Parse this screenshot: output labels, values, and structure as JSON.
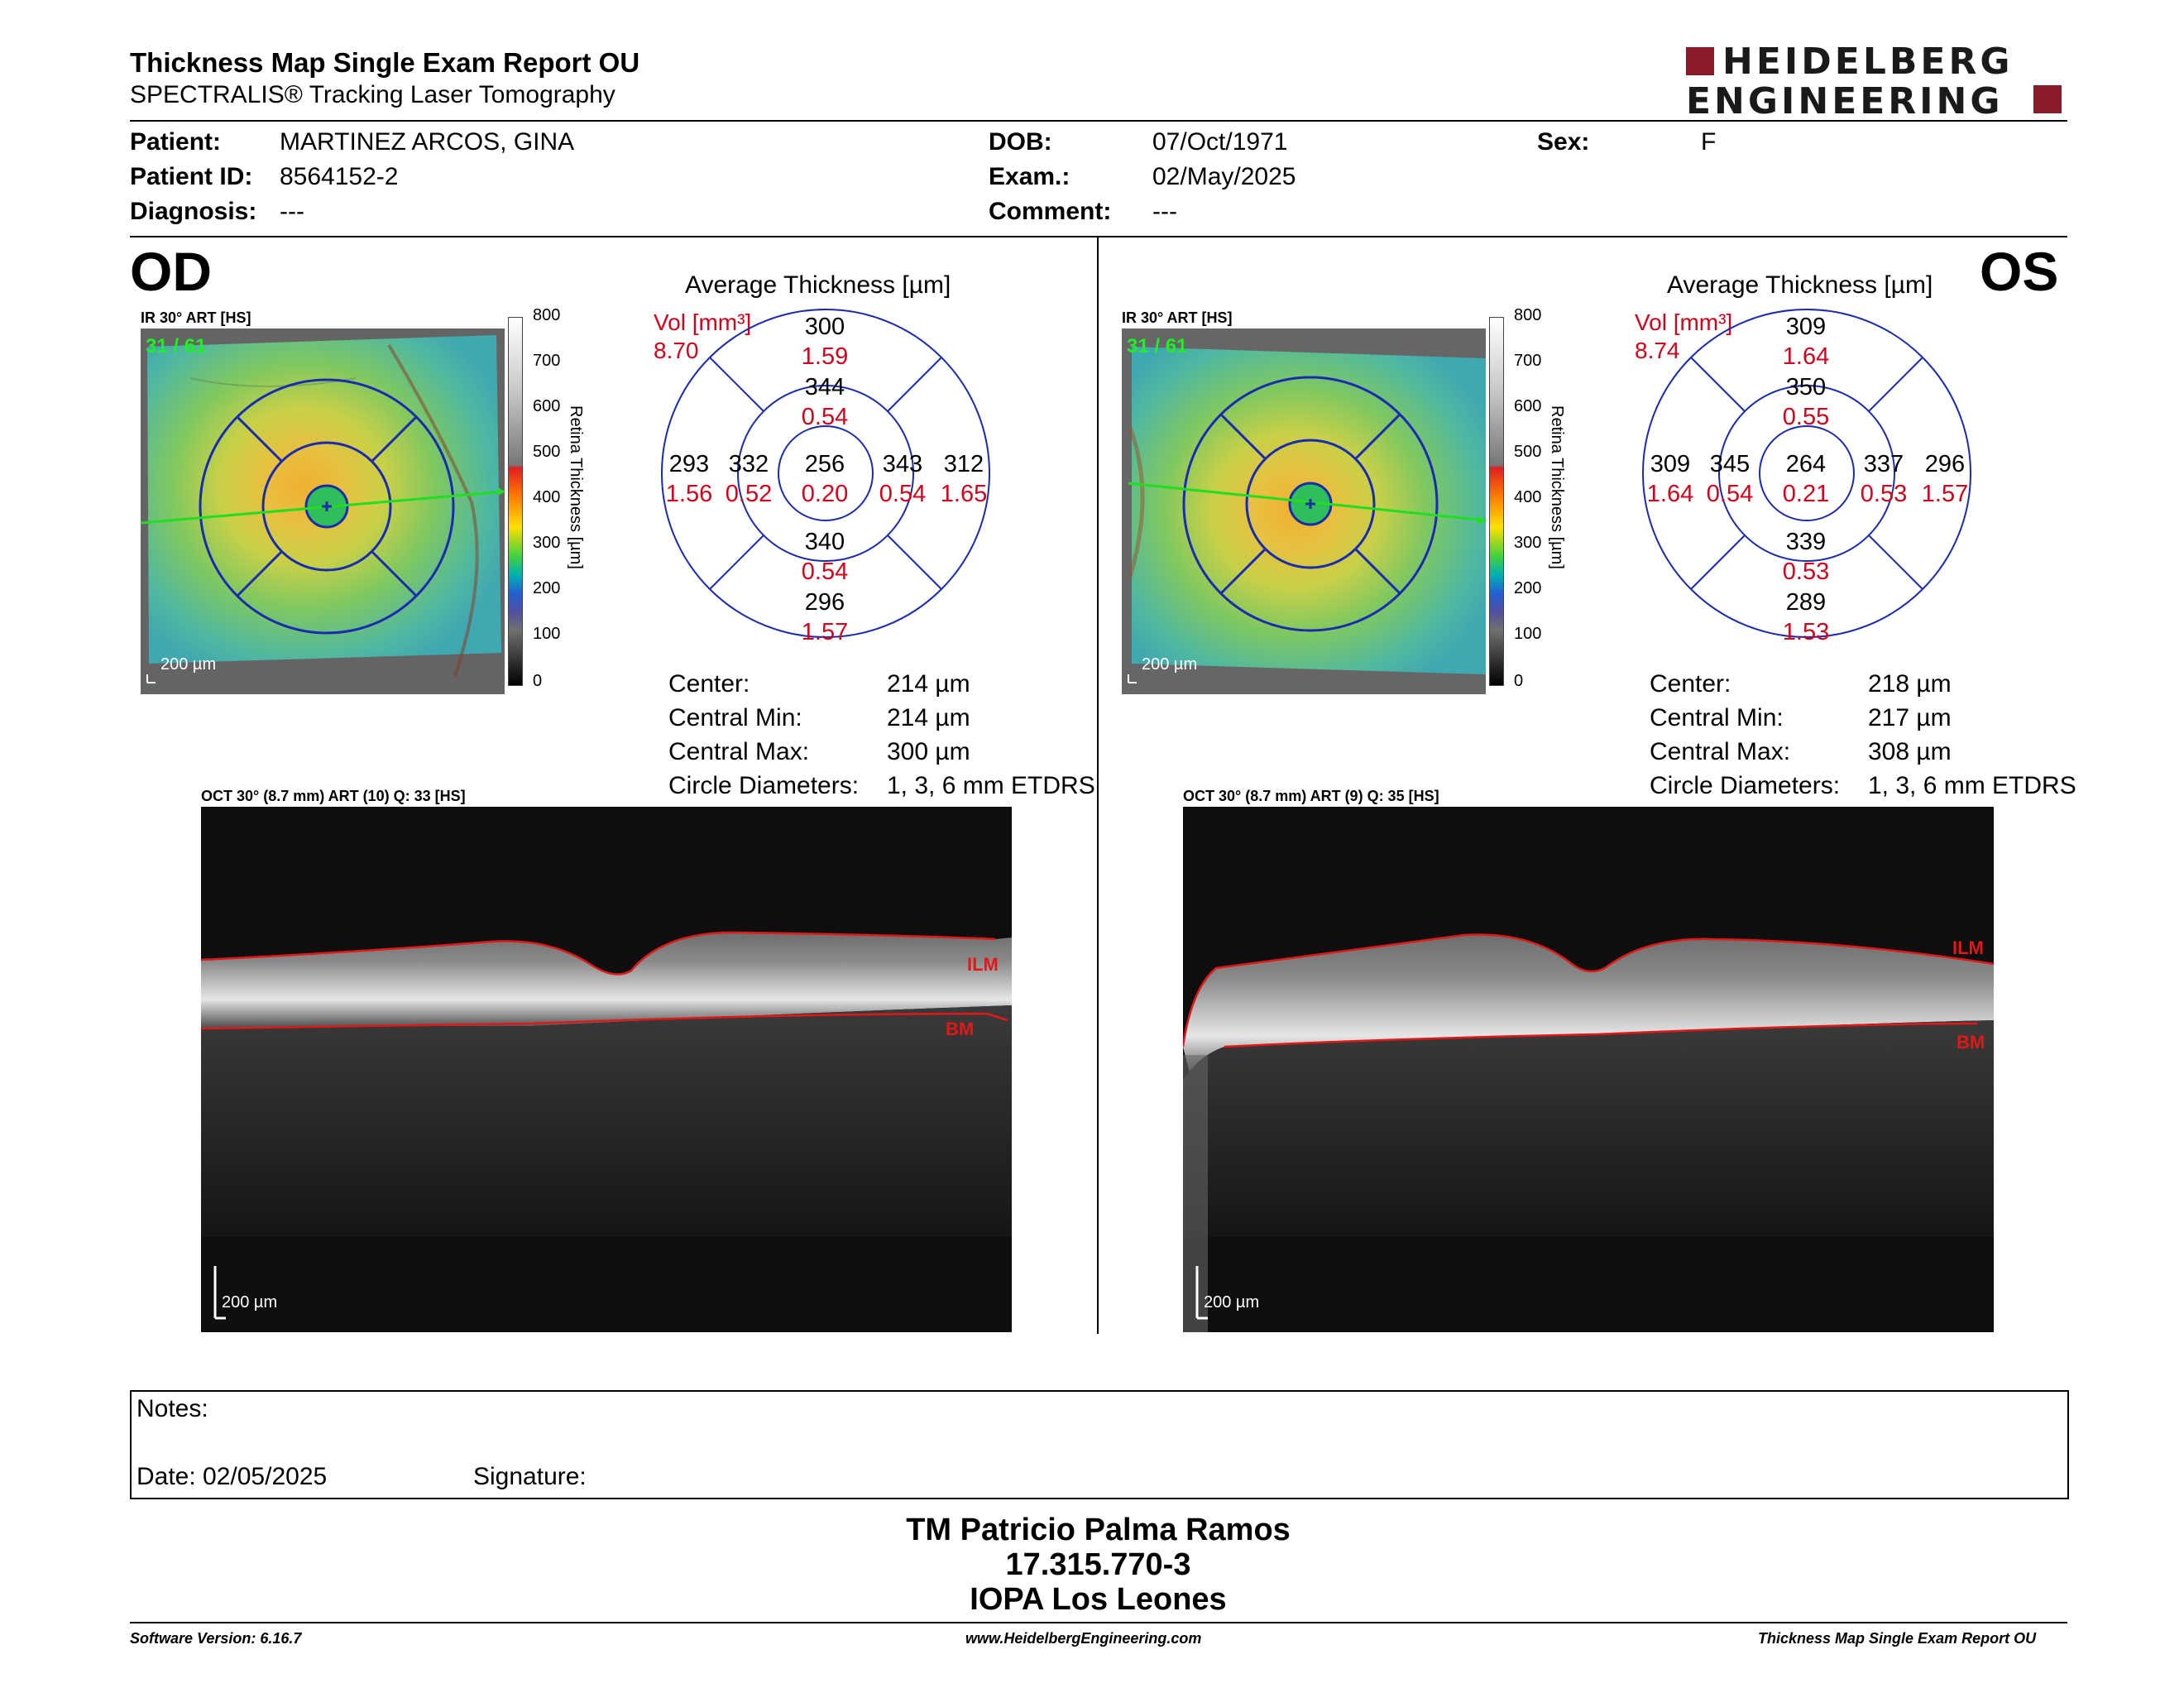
{
  "report": {
    "title": "Thickness Map Single Exam Report OU",
    "subtitle": "SPECTRALIS® Tracking Laser Tomography"
  },
  "logo": {
    "line1": "HEIDELBERG",
    "line2": "ENGINEERING"
  },
  "patient": {
    "patient_label": "Patient:",
    "patient_value": "MARTINEZ ARCOS, GINA",
    "id_label": "Patient ID:",
    "id_value": "8564152-2",
    "diagnosis_label": "Diagnosis:",
    "diagnosis_value": "---",
    "dob_label": "DOB:",
    "dob_value": "07/Oct/1971",
    "exam_label": "Exam.:",
    "exam_value": "02/May/2025",
    "comment_label": "Comment:",
    "comment_value": "---",
    "sex_label": "Sex:",
    "sex_value": "F"
  },
  "od": {
    "eye": "OD",
    "ir_caption": "IR 30° ART [HS]",
    "frame_label": "31 / 61",
    "scale_label": "200 µm",
    "avg_title": "Average Thickness [µm]",
    "vol_label": "Vol [mm³]",
    "vol_total": "8.70",
    "sectors": {
      "center": {
        "thickness": "256",
        "volume": "0.20"
      },
      "inner_superior": {
        "thickness": "344",
        "volume": "0.54"
      },
      "inner_nasal_left": {
        "thickness": "332",
        "volume": "0.52"
      },
      "inner_right": {
        "thickness": "343",
        "volume": "0.54"
      },
      "inner_inferior": {
        "thickness": "340",
        "volume": "0.54"
      },
      "outer_superior": {
        "thickness": "300",
        "volume": "1.59"
      },
      "outer_left": {
        "thickness": "293",
        "volume": "1.56"
      },
      "outer_right": {
        "thickness": "312",
        "volume": "1.65"
      },
      "outer_inferior": {
        "thickness": "296",
        "volume": "1.57"
      }
    },
    "stats": [
      {
        "label": "Center:",
        "value": "214 µm"
      },
      {
        "label": "Central Min:",
        "value": "214 µm"
      },
      {
        "label": "Central Max:",
        "value": "300 µm"
      },
      {
        "label": "Circle Diameters:",
        "value": "1, 3, 6 mm ETDRS"
      }
    ],
    "oct_caption": "OCT 30° (8.7 mm) ART (10) Q: 33 [HS]",
    "oct_ilm": "ILM",
    "oct_bm": "BM",
    "oct_scale": "200 µm"
  },
  "os": {
    "eye": "OS",
    "ir_caption": "IR 30° ART [HS]",
    "frame_label": "31 / 61",
    "scale_label": "200 µm",
    "avg_title": "Average Thickness [µm]",
    "vol_label": "Vol [mm³]",
    "vol_total": "8.74",
    "sectors": {
      "center": {
        "thickness": "264",
        "volume": "0.21"
      },
      "inner_superior": {
        "thickness": "350",
        "volume": "0.55"
      },
      "inner_left": {
        "thickness": "345",
        "volume": "0.54"
      },
      "inner_right": {
        "thickness": "337",
        "volume": "0.53"
      },
      "inner_inferior": {
        "thickness": "339",
        "volume": "0.53"
      },
      "outer_superior": {
        "thickness": "309",
        "volume": "1.64"
      },
      "outer_left": {
        "thickness": "309",
        "volume": "1.64"
      },
      "outer_right": {
        "thickness": "296",
        "volume": "1.57"
      },
      "outer_inferior": {
        "thickness": "289",
        "volume": "1.53"
      }
    },
    "stats": [
      {
        "label": "Center:",
        "value": "218 µm"
      },
      {
        "label": "Central Min:",
        "value": "217 µm"
      },
      {
        "label": "Central Max:",
        "value": "308 µm"
      },
      {
        "label": "Circle Diameters:",
        "value": "1, 3, 6 mm ETDRS"
      }
    ],
    "oct_caption": "OCT 30° (8.7 mm) ART (9) Q: 35 [HS]",
    "oct_ilm": "ILM",
    "oct_bm": "BM",
    "oct_scale": "200 µm"
  },
  "colorbar": {
    "title": "Retina Thickness [µm]",
    "ticks": [
      "800",
      "700",
      "600",
      "500",
      "400",
      "300",
      "200",
      "100",
      "0"
    ]
  },
  "notes": {
    "notes_label": "Notes:",
    "date_label": "Date: 02/05/2025",
    "signature_label": "Signature:"
  },
  "signature": {
    "name": "TM Patricio Palma Ramos",
    "rut": "17.315.770-3",
    "institution": "IOPA Los Leones"
  },
  "footer": {
    "software": "Software Version: 6.16.7",
    "website": "www.HeidelbergEngineering.com",
    "report_name": "Thickness Map Single Exam Report OU"
  },
  "colors": {
    "accent_red": "#d0021b",
    "logo_red": "#8b1a2b",
    "grid_blue": "#1a2bb0",
    "line_green": "#22dd22"
  }
}
